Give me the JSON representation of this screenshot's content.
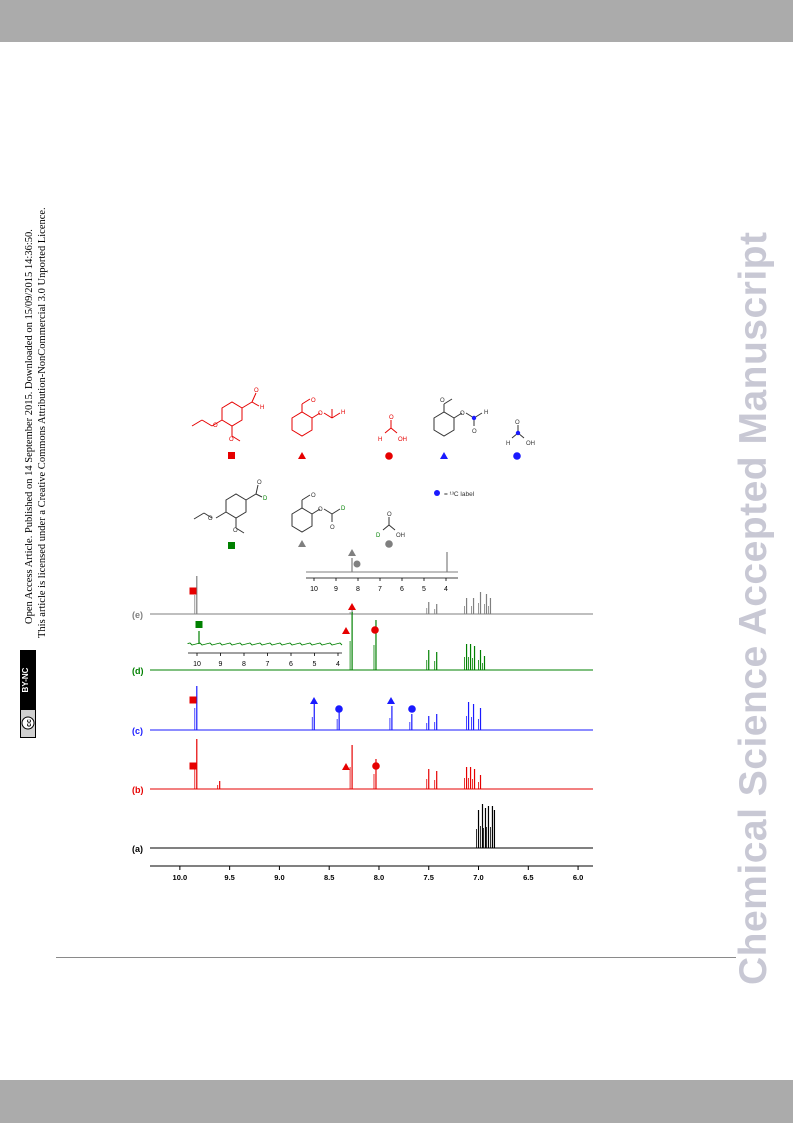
{
  "header": {
    "color": "#ababab"
  },
  "footer": {
    "color": "#ababab"
  },
  "side_notice": {
    "line1": "Open Access Article. Published on 14 September 2015. Downloaded on 15/09/2015 14:36:50.",
    "line2": "This article is licensed under a Creative Commons Attribution-NonCommercial 3.0 Unported Licence.",
    "badge_cc": "cc",
    "badge_text": "BY-NC"
  },
  "watermark": "Chemical Science Accepted Manuscript",
  "figure": {
    "legend_13c": "= ¹³C label",
    "trace_labels": [
      "(e)",
      "(d)",
      "(c)",
      "(b)",
      "(a)"
    ],
    "atoms": {
      "H": "H",
      "O": "O",
      "OH": "OH",
      "D": "D"
    },
    "inset_ticks": [
      "10",
      "9",
      "8",
      "7",
      "6",
      "5",
      "4"
    ],
    "colors": {
      "red": "#e60000",
      "blue": "#1a1aff",
      "green": "#008000",
      "gray": "#7f7f7f",
      "black": "#000000"
    }
  },
  "chart_data": {
    "type": "line",
    "xlabel": "",
    "ylabel": "",
    "x_ticks": [
      "10.0",
      "9.5",
      "9.0",
      "8.5",
      "8.0",
      "7.5",
      "7.0",
      "6.5",
      "6.0"
    ],
    "xlim": [
      10.3,
      5.85
    ],
    "x_reversed": true,
    "series": [
      {
        "name": "(e)",
        "color": "#7f7f7f",
        "peaks_ppm": [
          9.83,
          8.27,
          7.5,
          7.42,
          7.12,
          7.05,
          6.98,
          6.92,
          6.88
        ]
      },
      {
        "name": "(d)",
        "color": "#008000",
        "peaks_ppm": [
          8.27,
          8.03,
          7.5,
          7.42,
          7.12,
          7.08,
          7.04,
          6.98,
          6.94
        ]
      },
      {
        "name": "(c)",
        "color": "#1a1aff",
        "peaks_ppm": [
          9.83,
          8.65,
          8.4,
          7.87,
          7.67,
          7.5,
          7.42,
          7.1,
          7.05,
          6.98
        ]
      },
      {
        "name": "(b)",
        "color": "#e60000",
        "peaks_ppm": [
          9.83,
          9.6,
          8.27,
          8.03,
          7.5,
          7.42,
          7.12,
          7.08,
          7.04,
          6.98
        ]
      },
      {
        "name": "(a)",
        "color": "#000000",
        "peaks_ppm": [
          7.0,
          6.96,
          6.93,
          6.9,
          6.86,
          6.84
        ]
      }
    ]
  }
}
